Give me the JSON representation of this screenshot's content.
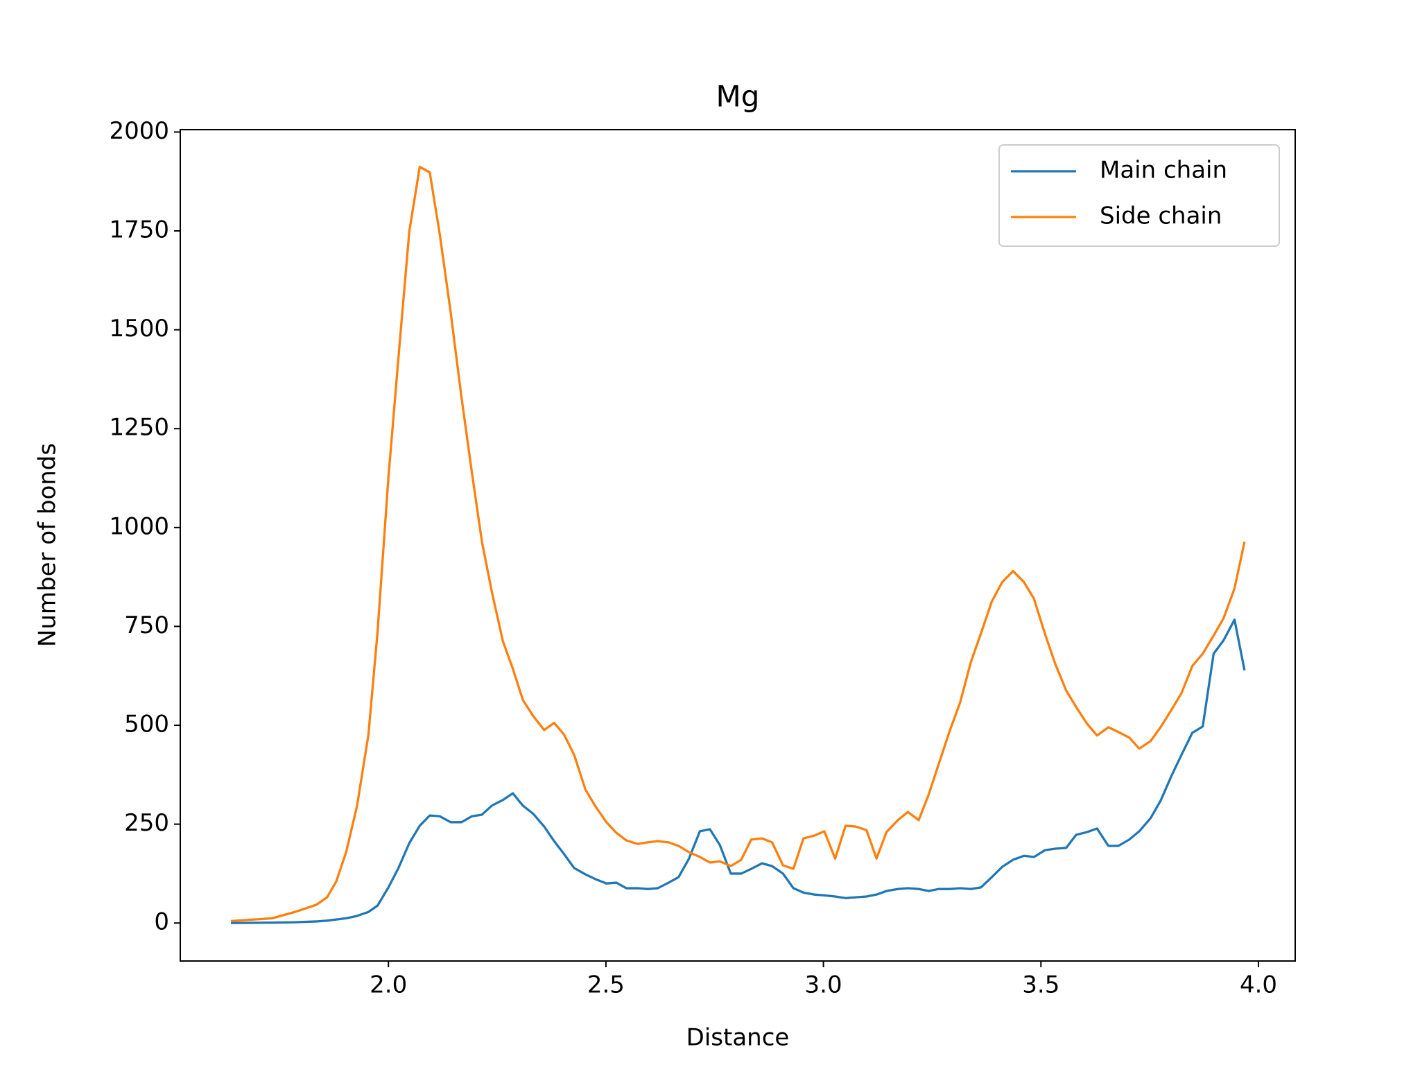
{
  "chart_data": {
    "type": "line",
    "title": "Mg",
    "x_label": "Distance",
    "y_label": "Number of bonds",
    "x": [
      1.638,
      1.733,
      1.785,
      1.834,
      1.859,
      1.88,
      1.903,
      1.928,
      1.954,
      1.975,
      2.0,
      2.023,
      2.048,
      2.072,
      2.095,
      2.118,
      2.143,
      2.168,
      2.192,
      2.215,
      2.238,
      2.263,
      2.286,
      2.309,
      2.333,
      2.358,
      2.381,
      2.404,
      2.427,
      2.453,
      2.476,
      2.501,
      2.524,
      2.547,
      2.573,
      2.596,
      2.619,
      2.644,
      2.667,
      2.691,
      2.716,
      2.739,
      2.762,
      2.787,
      2.811,
      2.834,
      2.859,
      2.882,
      2.907,
      2.931,
      2.954,
      2.979,
      3.002,
      3.027,
      3.051,
      3.074,
      3.099,
      3.122,
      3.145,
      3.171,
      3.194,
      3.219,
      3.242,
      3.265,
      3.291,
      3.314,
      3.339,
      3.362,
      3.387,
      3.411,
      3.436,
      3.461,
      3.484,
      3.509,
      3.533,
      3.558,
      3.581,
      3.606,
      3.629,
      3.655,
      3.678,
      3.703,
      3.726,
      3.752,
      3.775,
      3.8,
      3.823,
      3.848,
      3.872,
      3.897,
      3.92,
      3.945,
      3.968
    ],
    "series": [
      {
        "name": "Main chain",
        "color": "#1f77b4",
        "values": [
          0,
          1,
          2,
          4,
          6,
          9,
          12,
          18,
          28,
          44,
          90,
          139,
          202,
          246,
          272,
          270,
          255,
          255,
          270,
          274,
          297,
          311,
          328,
          297,
          276,
          244,
          207,
          174,
          139,
          123,
          111,
          100,
          102,
          88,
          88,
          86,
          88,
          102,
          116,
          163,
          232,
          237,
          197,
          125,
          125,
          137,
          151,
          144,
          125,
          88,
          77,
          72,
          70,
          67,
          63,
          65,
          67,
          72,
          81,
          86,
          88,
          86,
          81,
          86,
          86,
          88,
          86,
          90,
          116,
          142,
          160,
          170,
          167,
          184,
          188,
          190,
          223,
          230,
          239,
          195,
          195,
          211,
          232,
          265,
          309,
          372,
          425,
          481,
          497,
          681,
          715,
          767,
          639
        ]
      },
      {
        "name": "Side chain",
        "color": "#ff7f0e",
        "values": [
          5,
          12,
          28,
          46,
          65,
          105,
          180,
          297,
          476,
          736,
          1127,
          1429,
          1749,
          1912,
          1898,
          1742,
          1545,
          1329,
          1138,
          964,
          836,
          713,
          643,
          564,
          523,
          488,
          506,
          476,
          425,
          337,
          295,
          255,
          228,
          209,
          200,
          204,
          207,
          204,
          195,
          179,
          167,
          153,
          156,
          144,
          160,
          211,
          214,
          204,
          146,
          137,
          214,
          221,
          232,
          163,
          246,
          244,
          235,
          163,
          230,
          260,
          281,
          260,
          325,
          402,
          488,
          557,
          660,
          732,
          813,
          862,
          890,
          862,
          820,
          732,
          655,
          588,
          546,
          504,
          474,
          495,
          483,
          469,
          441,
          460,
          495,
          539,
          581,
          650,
          681,
          727,
          771,
          846,
          964
        ]
      }
    ],
    "xlim": [
      1.5215,
      4.0845
    ],
    "ylim": [
      -96,
      2006
    ],
    "xticks": [
      {
        "value": 2,
        "label": "2.0"
      },
      {
        "value": 2.5,
        "label": "2.5"
      },
      {
        "value": 3,
        "label": "3.0"
      },
      {
        "value": 3.5,
        "label": "3.5"
      },
      {
        "value": 4,
        "label": "4.0"
      }
    ],
    "yticks": [
      0,
      250,
      500,
      750,
      1000,
      1250,
      1500,
      1750,
      2000
    ],
    "legend": "upper right",
    "grid": false
  }
}
